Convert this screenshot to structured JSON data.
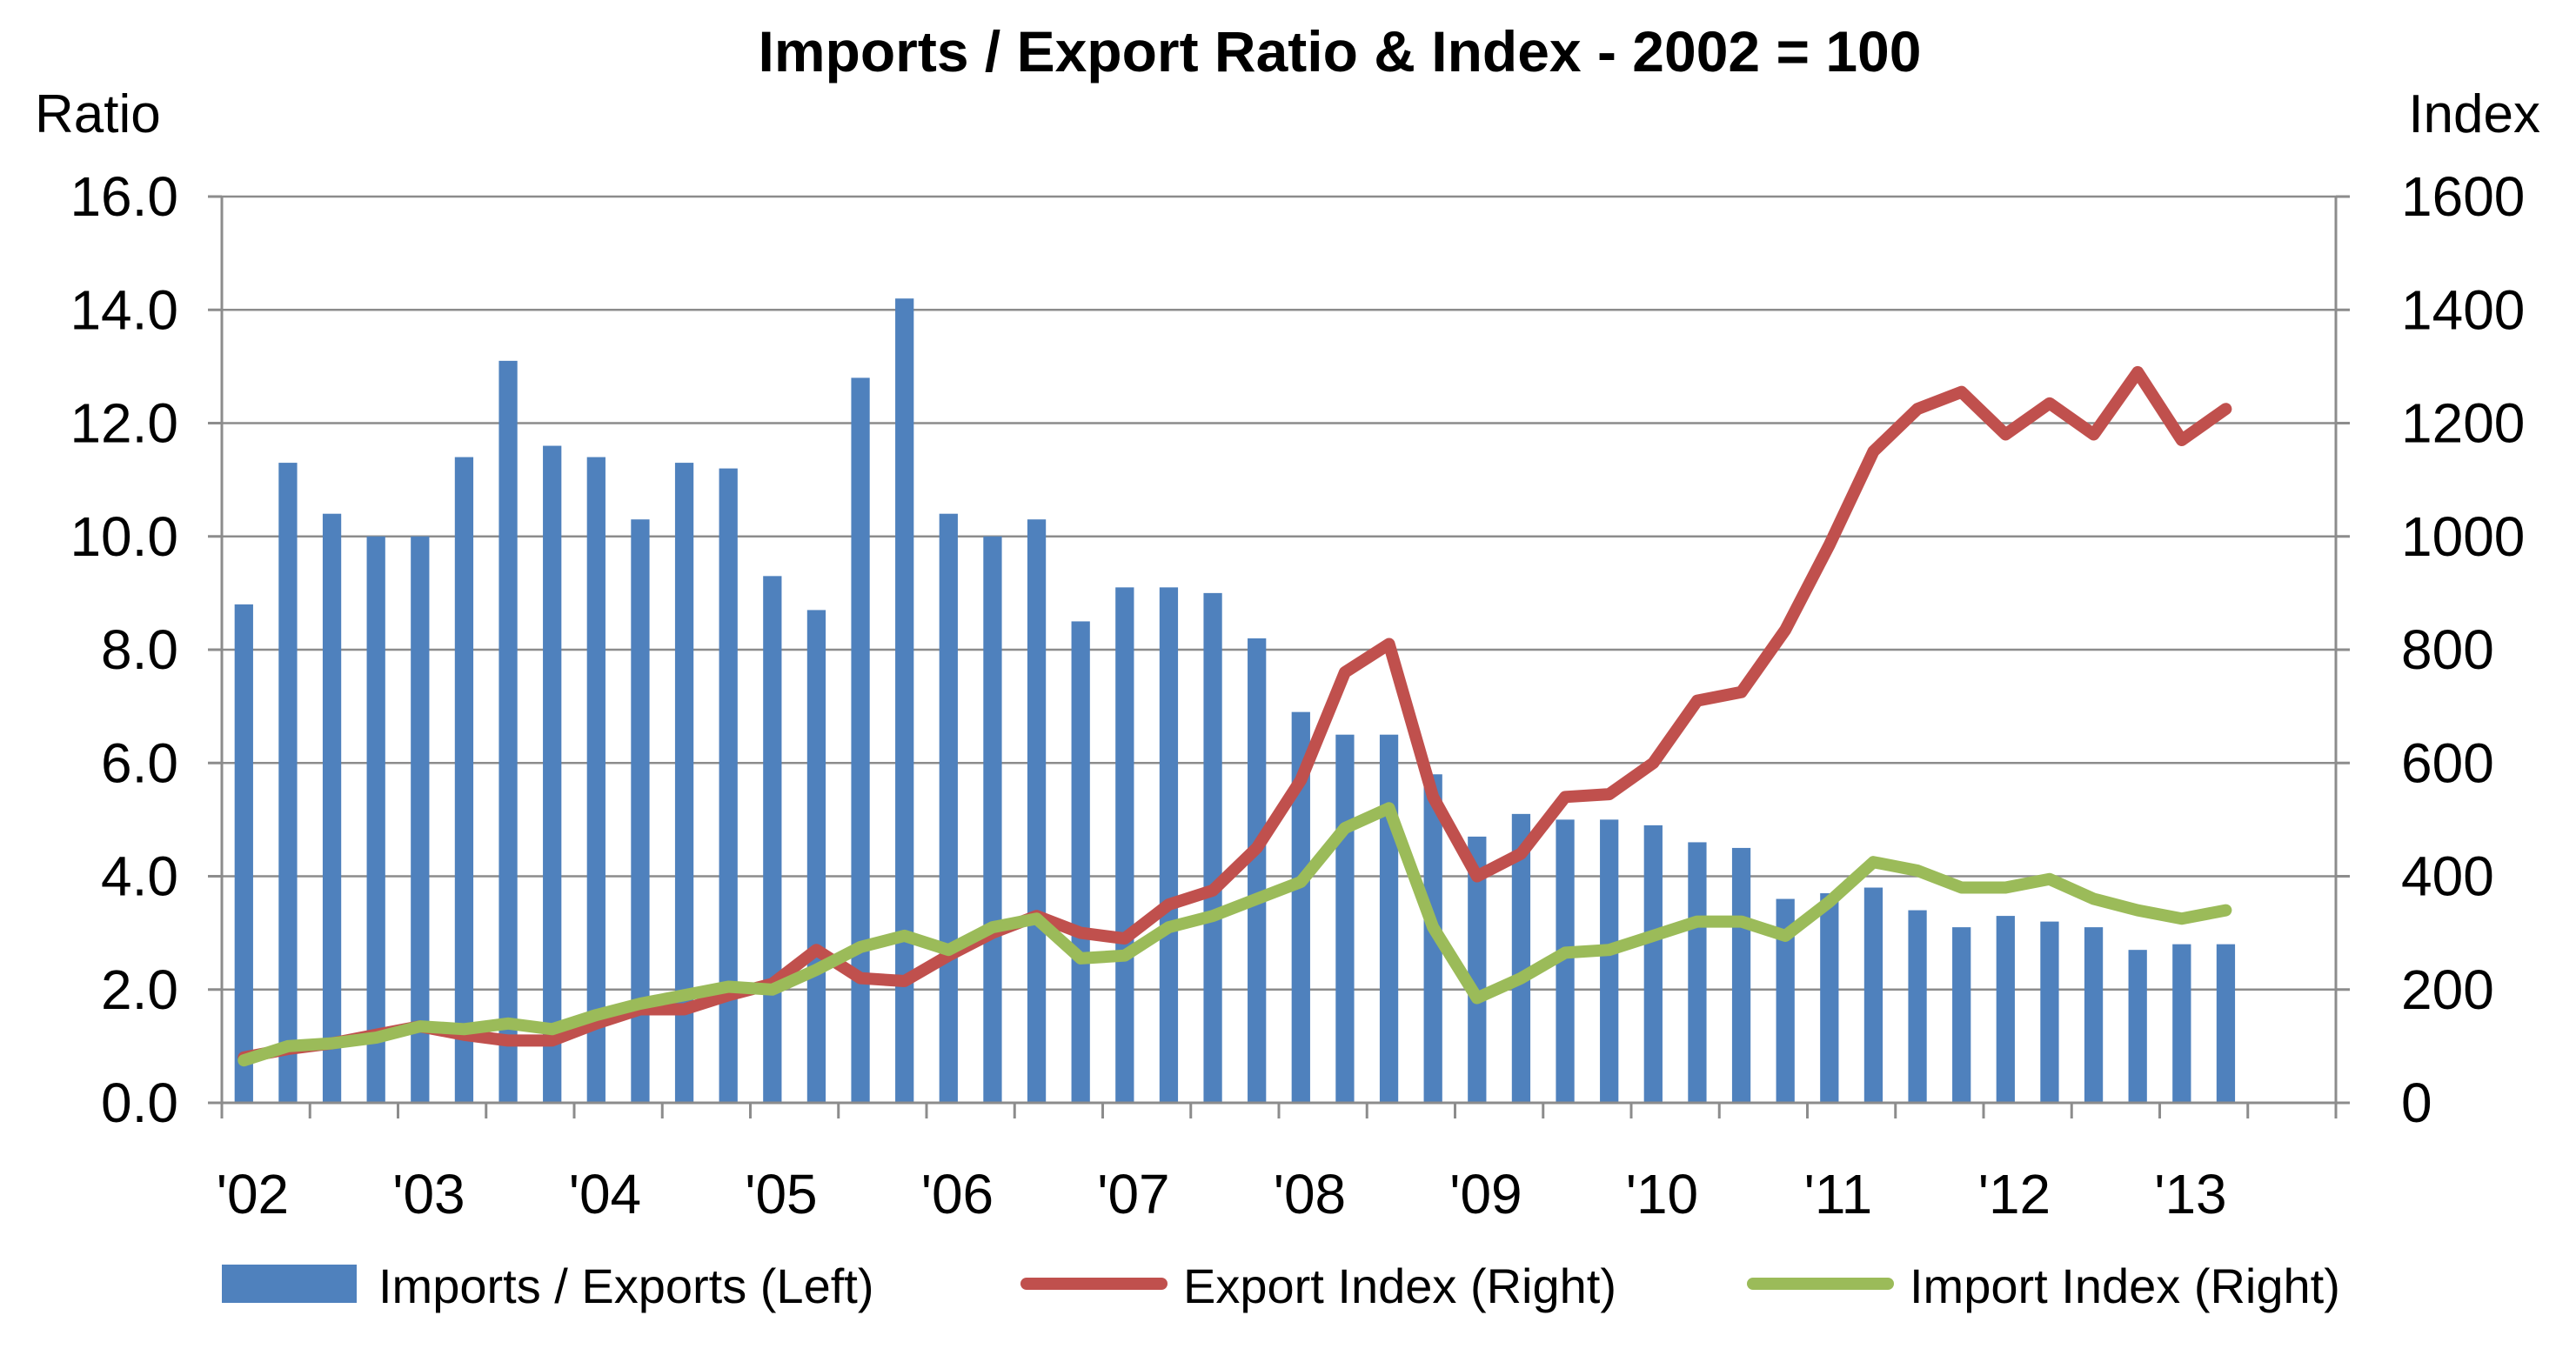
{
  "chart_data": {
    "type": "bar",
    "title": "Imports / Export Ratio & Index - 2002 = 100",
    "left_axis_label": "Ratio",
    "right_axis_label": "Index",
    "left_ylim": [
      0,
      16
    ],
    "right_ylim": [
      0,
      1600
    ],
    "left_ticks": [
      "0.0",
      "2.0",
      "4.0",
      "6.0",
      "8.0",
      "10.0",
      "12.0",
      "14.0",
      "16.0"
    ],
    "right_ticks": [
      "0",
      "200",
      "400",
      "600",
      "800",
      "1000",
      "1200",
      "1400",
      "1600"
    ],
    "x_tick_labels": [
      "'02",
      "'03",
      "'04",
      "'05",
      "'06",
      "'07",
      "'08",
      "'09",
      "'10",
      "'11",
      "'12",
      "'13"
    ],
    "grid": "horizontal",
    "legend_position": "bottom",
    "series": [
      {
        "name": "Imports / Exports (Left)",
        "type": "bar",
        "axis": "left",
        "color": "#4F81BD",
        "values": [
          8.8,
          11.3,
          10.4,
          10.0,
          10.0,
          11.4,
          13.1,
          11.6,
          11.4,
          10.3,
          11.3,
          11.2,
          9.3,
          8.7,
          12.8,
          14.2,
          10.4,
          10.0,
          10.3,
          8.5,
          9.1,
          9.1,
          9.0,
          8.2,
          6.9,
          6.5,
          6.5,
          5.8,
          4.7,
          5.1,
          5.0,
          5.0,
          4.9,
          4.6,
          4.5,
          3.6,
          3.7,
          3.8,
          3.4,
          3.1,
          3.3,
          3.2,
          3.1,
          2.7,
          2.8,
          2.8
        ]
      },
      {
        "name": "Export Index (Right)",
        "type": "line",
        "axis": "right",
        "color": "#C0504D",
        "values": [
          80,
          95,
          105,
          120,
          135,
          120,
          110,
          110,
          140,
          165,
          165,
          190,
          210,
          270,
          220,
          215,
          260,
          300,
          330,
          300,
          290,
          350,
          375,
          450,
          570,
          760,
          810,
          540,
          400,
          440,
          540,
          545,
          600,
          710,
          725,
          835,
          985,
          1150,
          1225,
          1255,
          1180,
          1235,
          1180,
          1290,
          1170,
          1225
        ]
      },
      {
        "name": "Import Index (Right)",
        "type": "line",
        "axis": "right",
        "color": "#9BBB59",
        "values": [
          75,
          100,
          105,
          115,
          135,
          130,
          140,
          130,
          155,
          175,
          190,
          205,
          200,
          235,
          275,
          295,
          270,
          310,
          325,
          255,
          260,
          310,
          330,
          360,
          390,
          485,
          520,
          310,
          185,
          220,
          265,
          270,
          295,
          320,
          320,
          295,
          355,
          425,
          410,
          380,
          380,
          395,
          360,
          340,
          325,
          340
        ]
      }
    ]
  }
}
